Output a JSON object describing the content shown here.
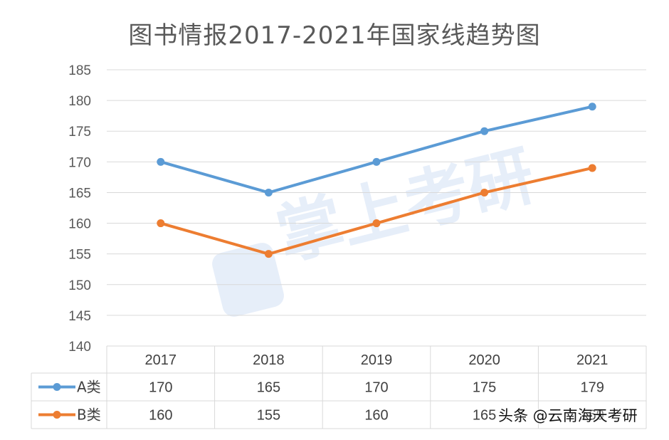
{
  "chart_data": {
    "type": "line",
    "title": "图书情报2017-2021年国家线趋势图",
    "categories": [
      "2017",
      "2018",
      "2019",
      "2020",
      "2021"
    ],
    "series": [
      {
        "name": "A类",
        "values": [
          170,
          165,
          170,
          175,
          179
        ],
        "color": "#5b9bd5"
      },
      {
        "name": "B类",
        "values": [
          160,
          155,
          160,
          165,
          169
        ],
        "color": "#ed7d31"
      }
    ],
    "ylim": [
      140,
      185
    ],
    "yticks": [
      140,
      145,
      150,
      155,
      160,
      165,
      170,
      175,
      180,
      185
    ],
    "grid": true,
    "legend": "data-table"
  },
  "watermark": {
    "center_text": "掌上考研",
    "credit": "头条 @云南海天考研"
  }
}
